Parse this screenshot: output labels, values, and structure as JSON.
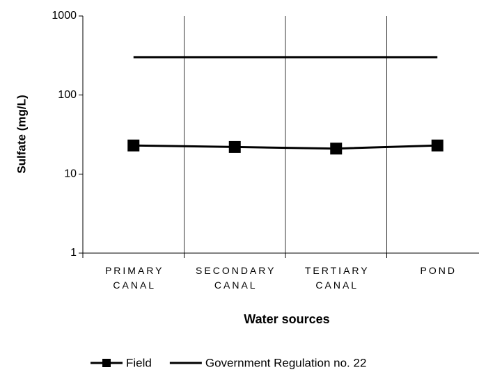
{
  "chart_data": {
    "type": "line",
    "xlabel": "Water sources",
    "ylabel": "Sulfate (mg/L)",
    "categories": [
      "PRIMARY CANAL",
      "SECONDARY CANAL",
      "TERTIARY CANAL",
      "POND"
    ],
    "series": [
      {
        "name": "Field",
        "color": "#000000",
        "marker": "square",
        "values": [
          23,
          22,
          21,
          23
        ]
      },
      {
        "name": "Government Regulation no. 22",
        "color": "#000000",
        "marker": "none",
        "values": [
          300,
          300,
          300,
          300
        ]
      }
    ],
    "ylim": [
      1,
      1000
    ],
    "yticks": [
      1,
      10,
      100,
      1000
    ],
    "log_y": true,
    "legend": "bottom"
  }
}
